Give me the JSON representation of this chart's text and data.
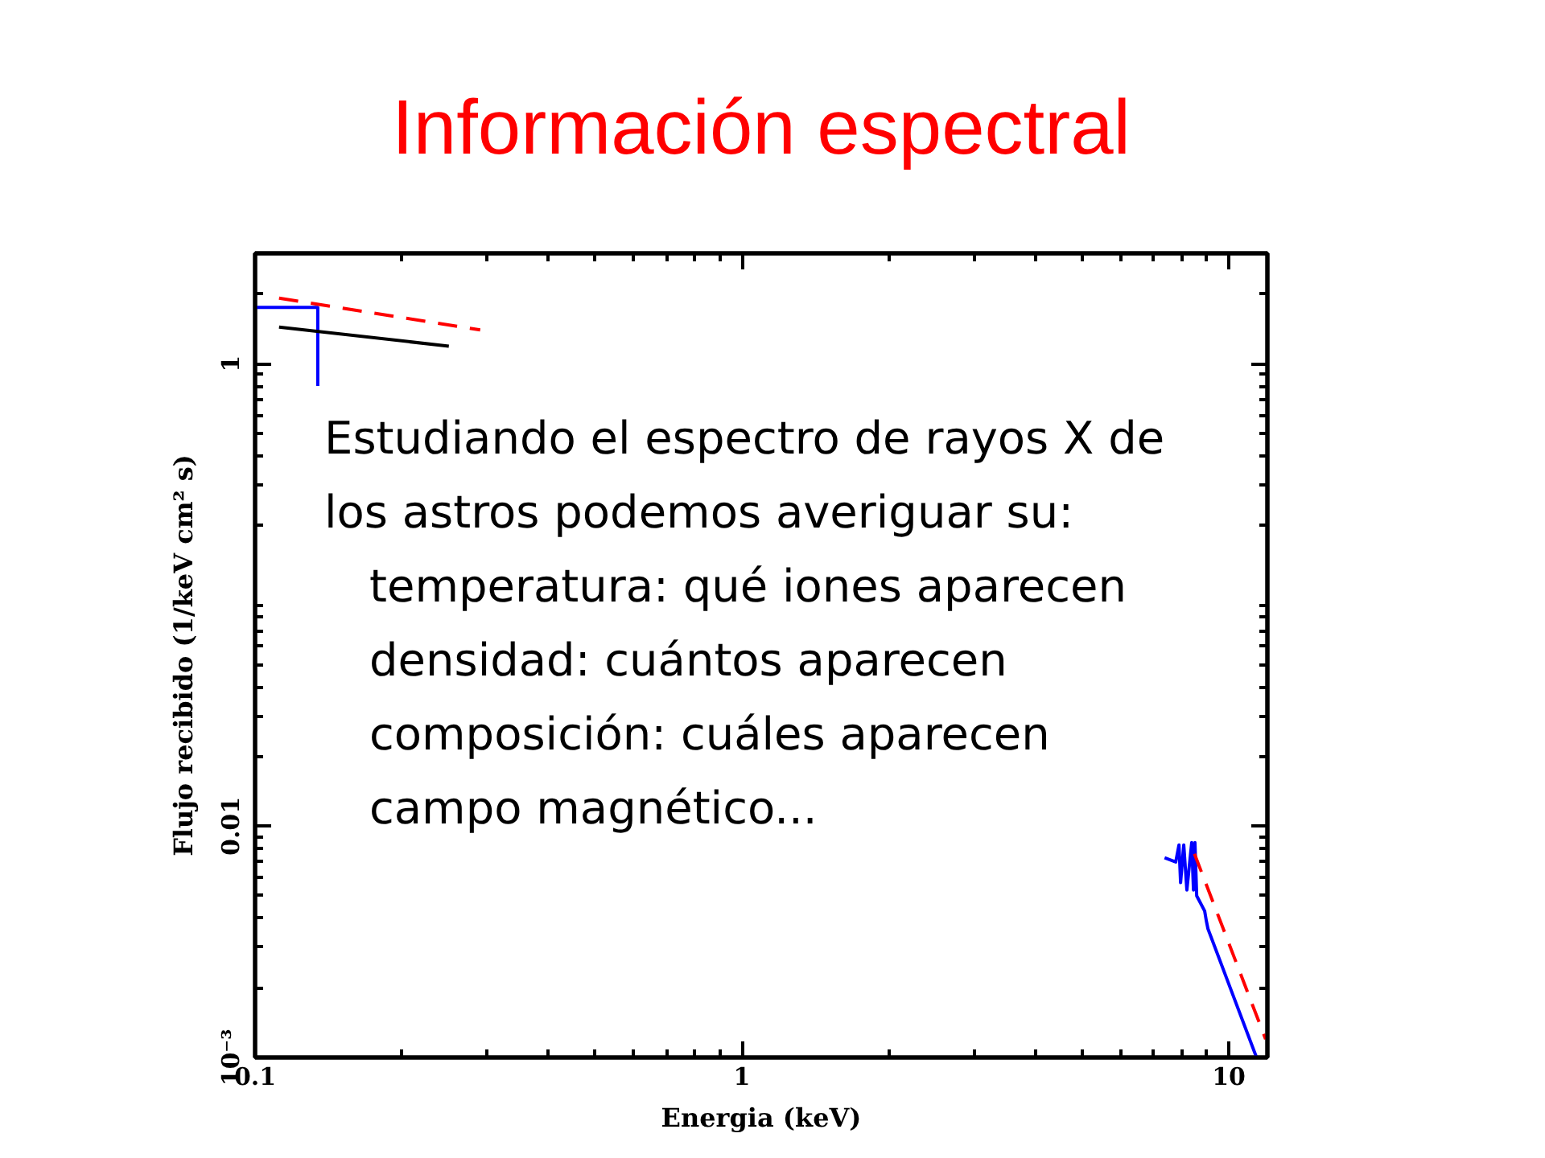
{
  "chart_data": {
    "type": "line",
    "title": "Información espectral",
    "xlabel": "Energia (keV)",
    "ylabel": "Flujo recibido (1/keV cm² s)",
    "log": "xy",
    "xlim": [
      0.1,
      12
    ],
    "ylim": [
      0.001,
      3
    ],
    "xticks": [
      0.1,
      1,
      10
    ],
    "yticks": [
      {
        "value": 0.001,
        "label": "10⁻³"
      },
      0.01,
      1
    ],
    "series": [
      {
        "color": "#0000ff",
        "x": [
          0.1,
          0.1345,
          0.1345,
          1,
          7.38,
          7.78,
          7.9,
          7.96,
          8.08,
          8.2,
          8.39,
          8.46,
          8.52,
          8.59,
          8.92,
          8.99,
          9.06,
          11.4
        ],
        "values": [
          1.75,
          1.75,
          0.8,
          null,
          0.0073,
          0.007,
          0.0083,
          0.0057,
          0.0083,
          0.0053,
          0.0085,
          0.0053,
          0.0085,
          0.005,
          0.0043,
          0.0039,
          0.0036,
          0.001
        ]
      },
      {
        "color": "#000000",
        "x": [
          0.112,
          0.25
        ],
        "values": [
          1.44,
          1.19
        ]
      },
      {
        "color": "#ff0000",
        "line_style": "dashed",
        "x": [
          0.112,
          0.29,
          1,
          8.5,
          11.9
        ],
        "values": [
          1.92,
          1.4,
          null,
          0.0076,
          0.0012
        ]
      }
    ],
    "annotations": [
      "Estudiando el espectro de rayos X de",
      "los astros podemos averiguar su:",
      "temperatura: qué iones aparecen",
      "densidad: cuántos aparecen",
      "composición: cuáles aparecen",
      "campo magnético..."
    ]
  }
}
